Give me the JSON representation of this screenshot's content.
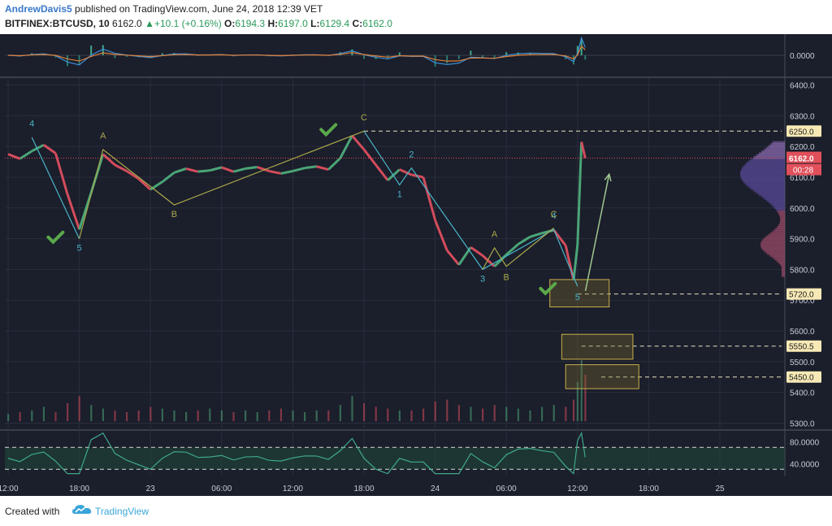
{
  "header": {
    "author": "AndrewDavis5",
    "published": "published on TradingView.com, June 24, 2018 12:39 VET",
    "symbol": "BITFINEX:BTCUSD, 10",
    "last": "6162.0",
    "change": "+10.1 (+0.16%)",
    "o_label": "O:",
    "o_value": "6194.3",
    "h_label": "H:",
    "h_value": "6197.0",
    "l_label": "L:",
    "l_value": "6129.4",
    "c_label": "C:",
    "c_value": "6162.0"
  },
  "footer": {
    "created": "Created with",
    "brand": "TradingView"
  },
  "colors": {
    "background": "#1b1e2b",
    "grid": "#2a2e3d",
    "up": "#4aa577",
    "down": "#d34c5c",
    "wave_cyan": "#4ab5c8",
    "wave_olive": "#a8a84a",
    "check": "#5aa84a",
    "macd": "#3a8fd6",
    "signal": "#e0803a",
    "rsi": "#3fa88a"
  },
  "chart_data": {
    "type": "candlestick",
    "y_axis": {
      "ticks": [
        "6400.0",
        "6300.0",
        "6200.0",
        "6100.0",
        "6000.0",
        "5900.0",
        "5800.0",
        "5700.0",
        "5600.0",
        "5500.0",
        "5400.0",
        "5300.0"
      ],
      "tick_values": [
        6400,
        6300,
        6200,
        6100,
        6000,
        5900,
        5800,
        5700,
        5600,
        5500,
        5400,
        5300
      ],
      "range": [
        5280,
        6420
      ]
    },
    "x_axis": {
      "ticks": [
        "12:00",
        "18:00",
        "23",
        "06:00",
        "12:00",
        "18:00",
        "24",
        "06:00",
        "12:00",
        "18:00",
        "25"
      ]
    },
    "price_series": [
      [
        "22 12:00",
        6175
      ],
      [
        "22 13:00",
        6160
      ],
      [
        "22 14:00",
        6185
      ],
      [
        "22 15:00",
        6205
      ],
      [
        "22 16:00",
        6178
      ],
      [
        "22 17:00",
        6045
      ],
      [
        "22 18:00",
        5930
      ],
      [
        "22 19:00",
        6050
      ],
      [
        "22 20:00",
        6175
      ],
      [
        "22 21:00",
        6140
      ],
      [
        "22 22:00",
        6120
      ],
      [
        "22 23:00",
        6095
      ],
      [
        "23 00:00",
        6060
      ],
      [
        "23 01:00",
        6085
      ],
      [
        "23 02:00",
        6115
      ],
      [
        "23 03:00",
        6128
      ],
      [
        "23 04:00",
        6118
      ],
      [
        "23 05:00",
        6122
      ],
      [
        "23 06:00",
        6132
      ],
      [
        "23 07:00",
        6118
      ],
      [
        "23 08:00",
        6128
      ],
      [
        "23 09:00",
        6133
      ],
      [
        "23 10:00",
        6120
      ],
      [
        "23 11:00",
        6112
      ],
      [
        "23 12:00",
        6120
      ],
      [
        "23 13:00",
        6130
      ],
      [
        "23 14:00",
        6135
      ],
      [
        "23 15:00",
        6125
      ],
      [
        "23 16:00",
        6162
      ],
      [
        "23 17:00",
        6235
      ],
      [
        "23 18:00",
        6190
      ],
      [
        "23 19:00",
        6140
      ],
      [
        "23 20:00",
        6090
      ],
      [
        "23 21:00",
        6125
      ],
      [
        "23 22:00",
        6108
      ],
      [
        "23 23:00",
        6100
      ],
      [
        "24 00:00",
        5960
      ],
      [
        "24 01:00",
        5862
      ],
      [
        "24 02:00",
        5815
      ],
      [
        "24 03:00",
        5872
      ],
      [
        "24 04:00",
        5845
      ],
      [
        "24 05:00",
        5810
      ],
      [
        "24 06:00",
        5848
      ],
      [
        "24 07:00",
        5882
      ],
      [
        "24 08:00",
        5906
      ],
      [
        "24 09:00",
        5918
      ],
      [
        "24 10:00",
        5928
      ],
      [
        "24 11:00",
        5878
      ],
      [
        "24 11:40",
        5765
      ],
      [
        "24 12:00",
        5880
      ],
      [
        "24 12:20",
        6215
      ],
      [
        "24 12:39",
        6162
      ]
    ],
    "volume": [
      4,
      5,
      6,
      8,
      5,
      10,
      14,
      9,
      7,
      6,
      5,
      6,
      8,
      7,
      6,
      5,
      6,
      7,
      6,
      5,
      6,
      5,
      6,
      7,
      6,
      5,
      6,
      6,
      9,
      14,
      10,
      8,
      7,
      6,
      6,
      7,
      11,
      12,
      9,
      8,
      7,
      9,
      8,
      7,
      6,
      8,
      9,
      8,
      12,
      22,
      34,
      26
    ],
    "current_price": {
      "value": 6162.0,
      "label": "6162.0",
      "countdown": "00:28"
    },
    "levels": [
      {
        "value": 6250,
        "label": "6250.0"
      },
      {
        "value": 5720,
        "label": "5720.0"
      },
      {
        "value": 5550.5,
        "label": "5550.5"
      },
      {
        "value": 5450,
        "label": "5450.0"
      }
    ],
    "wave_labels": {
      "cyan": [
        "4",
        "5",
        "1",
        "2",
        "3",
        "4",
        "5"
      ],
      "olive": [
        "A",
        "B",
        "C",
        "A",
        "B",
        "C"
      ]
    },
    "wave_points": {
      "cyan_1": [
        [
          "22 14:00",
          6230
        ],
        [
          "22 18:00",
          5900
        ]
      ],
      "cyan_2": [
        [
          "23 18:00",
          6250
        ],
        [
          "23 21:00",
          6075
        ],
        [
          "23 22:00",
          6130
        ],
        [
          "24 04:00",
          5800
        ],
        [
          "24 10:00",
          5930
        ],
        [
          "24 12:00",
          5745
        ]
      ],
      "olive_1": [
        [
          "22 18:00",
          5900
        ],
        [
          "22 20:00",
          6190
        ],
        [
          "23 02:00",
          6010
        ],
        [
          "23 18:00",
          6250
        ]
      ],
      "olive_2": [
        [
          "24 04:00",
          5800
        ],
        [
          "24 05:00",
          5870
        ],
        [
          "24 06:00",
          5810
        ],
        [
          "24 10:00",
          5935
        ]
      ]
    },
    "target_arrow": [
      [
        "24 12:40",
        5730
      ],
      [
        "24 14:40",
        6110
      ]
    ],
    "macd": {
      "axis_label": "0.0000",
      "level": 0.0
    },
    "rsi": {
      "ticks": [
        "80.0000",
        "40.0000"
      ],
      "tick_values": [
        80,
        40
      ],
      "range": [
        20,
        100
      ],
      "bands": [
        70,
        30
      ]
    }
  }
}
